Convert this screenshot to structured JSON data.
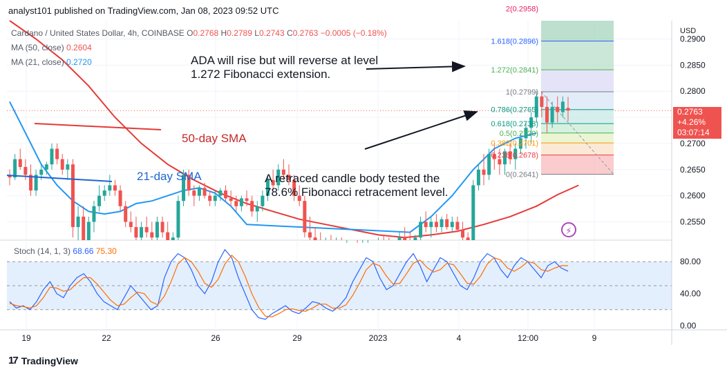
{
  "publisher": {
    "name": "analyst101",
    "line": "analyst101 published on TradingView.com, Jan 08, 2023 09:52 UTC"
  },
  "brand": {
    "logo": "17",
    "name": "TradingView"
  },
  "legend": {
    "symbol": "Cardano / United States Dollar, 4h, COINBASE",
    "ohlc": [
      {
        "k": "O",
        "v": "0.2768"
      },
      {
        "k": "H",
        "v": "0.2789"
      },
      {
        "k": "L",
        "v": "0.2743"
      },
      {
        "k": "C",
        "v": "0.2763"
      }
    ],
    "change": "−0.0005 (−0.18%)",
    "ma50_label": "MA (50, close)",
    "ma50_value": "0.2604",
    "ma21_label": "MA (21, close)",
    "ma21_value": "0.2720"
  },
  "annotations": {
    "top_line1": "ADA  will rise but will reverse at level",
    "top_line2": "1.272 Fibonacci extension.",
    "sma50": "50-day SMA",
    "sma21": "21-day SMA",
    "mid_line1": "A retraced candle body tested the",
    "mid_line2": "78.6% Fibonacci retracement level."
  },
  "price_box": {
    "price": "0.2763",
    "change": "+4.26%",
    "countdown": "03:07:14"
  },
  "stoch": {
    "label": "Stoch (14, 1, 3)",
    "k": "68.66",
    "d": "75.30"
  },
  "colors": {
    "up": "#26a69a",
    "down": "#ef5350",
    "ma50": "#e53935",
    "ma21": "#2196f3",
    "stoch_k": "#2962ff",
    "stoch_d": "#ff6d00",
    "note_sma50": "#c62828",
    "note_sma21": "#1e66d0",
    "bolt": "#ab47bc"
  },
  "chart_data": {
    "type": "candlestick",
    "title": "Cardano / United States Dollar, 4h, COINBASE",
    "ylabel": "USD",
    "ylim": [
      0.2515,
      0.2935
    ],
    "y_ticks": [
      "0.2900",
      "0.2850",
      "0.2800",
      "0.2750",
      "0.2700",
      "0.2650",
      "0.2600",
      "0.2550"
    ],
    "x_ticks": [
      "19",
      "22",
      "26",
      "29",
      "2023",
      "4",
      "12:00",
      "9"
    ],
    "candles": [
      [
        0.264,
        0.265,
        0.262,
        0.2635
      ],
      [
        0.2635,
        0.268,
        0.263,
        0.267
      ],
      [
        0.267,
        0.269,
        0.265,
        0.2655
      ],
      [
        0.2655,
        0.267,
        0.263,
        0.264
      ],
      [
        0.264,
        0.266,
        0.26,
        0.261
      ],
      [
        0.261,
        0.265,
        0.26,
        0.264
      ],
      [
        0.264,
        0.266,
        0.263,
        0.265
      ],
      [
        0.265,
        0.2665,
        0.264,
        0.266
      ],
      [
        0.266,
        0.27,
        0.265,
        0.269
      ],
      [
        0.269,
        0.27,
        0.266,
        0.267
      ],
      [
        0.267,
        0.268,
        0.264,
        0.265
      ],
      [
        0.265,
        0.267,
        0.263,
        0.266
      ],
      [
        0.266,
        0.267,
        0.252,
        0.254
      ],
      [
        0.254,
        0.258,
        0.251,
        0.256
      ],
      [
        0.256,
        0.258,
        0.25,
        0.251
      ],
      [
        0.251,
        0.256,
        0.25,
        0.255
      ],
      [
        0.255,
        0.259,
        0.253,
        0.258
      ],
      [
        0.258,
        0.262,
        0.257,
        0.26
      ],
      [
        0.26,
        0.262,
        0.259,
        0.261
      ],
      [
        0.261,
        0.264,
        0.26,
        0.262
      ],
      [
        0.262,
        0.263,
        0.26,
        0.261
      ],
      [
        0.261,
        0.262,
        0.257,
        0.258
      ],
      [
        0.258,
        0.259,
        0.254,
        0.255
      ],
      [
        0.255,
        0.257,
        0.253,
        0.254
      ],
      [
        0.254,
        0.256,
        0.251,
        0.252
      ],
      [
        0.252,
        0.255,
        0.25,
        0.254
      ],
      [
        0.254,
        0.256,
        0.252,
        0.253
      ],
      [
        0.253,
        0.255,
        0.251,
        0.252
      ],
      [
        0.252,
        0.256,
        0.25,
        0.255
      ],
      [
        0.255,
        0.256,
        0.252,
        0.253
      ],
      [
        0.253,
        0.255,
        0.25,
        0.251
      ],
      [
        0.251,
        0.253,
        0.25,
        0.252
      ],
      [
        0.252,
        0.26,
        0.251,
        0.259
      ],
      [
        0.259,
        0.265,
        0.258,
        0.264
      ],
      [
        0.264,
        0.265,
        0.26,
        0.261
      ],
      [
        0.261,
        0.262,
        0.258,
        0.26
      ],
      [
        0.26,
        0.262,
        0.259,
        0.2615
      ],
      [
        0.2615,
        0.2625,
        0.2595,
        0.26
      ],
      [
        0.26,
        0.261,
        0.258,
        0.259
      ],
      [
        0.259,
        0.261,
        0.258,
        0.26
      ],
      [
        0.26,
        0.2615,
        0.259,
        0.261
      ],
      [
        0.261,
        0.262,
        0.259,
        0.2595
      ],
      [
        0.2595,
        0.261,
        0.258,
        0.259
      ],
      [
        0.259,
        0.26,
        0.257,
        0.258
      ],
      [
        0.258,
        0.26,
        0.257,
        0.2595
      ],
      [
        0.2595,
        0.261,
        0.258,
        0.259
      ],
      [
        0.259,
        0.26,
        0.256,
        0.257
      ],
      [
        0.257,
        0.259,
        0.255,
        0.258
      ],
      [
        0.258,
        0.261,
        0.257,
        0.26
      ],
      [
        0.26,
        0.264,
        0.259,
        0.263
      ],
      [
        0.263,
        0.265,
        0.261,
        0.262
      ],
      [
        0.262,
        0.266,
        0.261,
        0.265
      ],
      [
        0.265,
        0.267,
        0.263,
        0.264
      ],
      [
        0.264,
        0.266,
        0.262,
        0.263
      ],
      [
        0.263,
        0.264,
        0.259,
        0.26
      ],
      [
        0.26,
        0.262,
        0.258,
        0.259
      ],
      [
        0.259,
        0.26,
        0.252,
        0.253
      ],
      [
        0.253,
        0.256,
        0.251,
        0.252
      ],
      [
        0.252,
        0.254,
        0.25,
        0.251
      ],
      [
        0.251,
        0.253,
        0.25,
        0.2505
      ],
      [
        0.2505,
        0.252,
        0.2495,
        0.251
      ],
      [
        0.251,
        0.2525,
        0.2495,
        0.25
      ],
      [
        0.25,
        0.252,
        0.249,
        0.251
      ],
      [
        0.251,
        0.252,
        0.2495,
        0.25
      ],
      [
        0.25,
        0.251,
        0.249,
        0.2505
      ],
      [
        0.2505,
        0.2515,
        0.2495,
        0.25
      ],
      [
        0.25,
        0.251,
        0.249,
        0.2495
      ],
      [
        0.2495,
        0.251,
        0.249,
        0.25
      ],
      [
        0.25,
        0.251,
        0.249,
        0.2505
      ],
      [
        0.2505,
        0.2515,
        0.2495,
        0.25
      ],
      [
        0.25,
        0.252,
        0.249,
        0.251
      ],
      [
        0.251,
        0.2525,
        0.25,
        0.2505
      ],
      [
        0.2505,
        0.252,
        0.2495,
        0.25
      ],
      [
        0.25,
        0.2515,
        0.249,
        0.251
      ],
      [
        0.251,
        0.253,
        0.25,
        0.252
      ],
      [
        0.252,
        0.254,
        0.251,
        0.2515
      ],
      [
        0.2515,
        0.253,
        0.25,
        0.251
      ],
      [
        0.251,
        0.2525,
        0.25,
        0.252
      ],
      [
        0.252,
        0.256,
        0.251,
        0.255
      ],
      [
        0.255,
        0.257,
        0.253,
        0.254
      ],
      [
        0.254,
        0.256,
        0.252,
        0.255
      ],
      [
        0.255,
        0.2565,
        0.253,
        0.254
      ],
      [
        0.254,
        0.256,
        0.253,
        0.2555
      ],
      [
        0.2555,
        0.2565,
        0.2535,
        0.254
      ],
      [
        0.254,
        0.256,
        0.253,
        0.255
      ],
      [
        0.255,
        0.256,
        0.253,
        0.2535
      ],
      [
        0.2535,
        0.255,
        0.251,
        0.252
      ],
      [
        0.252,
        0.253,
        0.2505,
        0.2515
      ],
      [
        0.2515,
        0.263,
        0.251,
        0.262
      ],
      [
        0.262,
        0.266,
        0.261,
        0.265
      ],
      [
        0.265,
        0.268,
        0.262,
        0.264
      ],
      [
        0.264,
        0.269,
        0.263,
        0.268
      ],
      [
        0.268,
        0.27,
        0.265,
        0.267
      ],
      [
        0.267,
        0.269,
        0.264,
        0.266
      ],
      [
        0.266,
        0.269,
        0.264,
        0.2685
      ],
      [
        0.2685,
        0.27,
        0.266,
        0.267
      ],
      [
        0.267,
        0.27,
        0.265,
        0.269
      ],
      [
        0.269,
        0.272,
        0.268,
        0.271
      ],
      [
        0.271,
        0.274,
        0.269,
        0.273
      ],
      [
        0.273,
        0.276,
        0.27,
        0.275
      ],
      [
        0.275,
        0.28,
        0.274,
        0.279
      ],
      [
        0.279,
        0.28,
        0.275,
        0.277
      ],
      [
        0.277,
        0.279,
        0.272,
        0.274
      ],
      [
        0.274,
        0.278,
        0.273,
        0.277
      ],
      [
        0.277,
        0.279,
        0.274,
        0.276
      ],
      [
        0.276,
        0.279,
        0.275,
        0.278
      ],
      [
        0.2768,
        0.2789,
        0.2743,
        0.2763
      ]
    ],
    "ma50": [
      0.2935,
      0.29,
      0.286,
      0.281,
      0.275,
      0.27,
      0.266,
      0.263,
      0.2605,
      0.2585,
      0.257,
      0.2555,
      0.2545,
      0.2535,
      0.2525,
      0.252,
      0.2525,
      0.2532,
      0.2545,
      0.256,
      0.258,
      0.2602,
      0.262
    ],
    "ma50_x": [
      0,
      5,
      10,
      15,
      20,
      25,
      30,
      35,
      40,
      45,
      50,
      55,
      60,
      65,
      70,
      75,
      80,
      85,
      90,
      95,
      100,
      104,
      108
    ],
    "ma21": [
      0.278,
      0.272,
      0.266,
      0.262,
      0.259,
      0.257,
      0.2565,
      0.257,
      0.2585,
      0.259,
      0.26,
      0.261,
      0.2615,
      0.2605,
      0.258,
      0.2545,
      0.2505,
      0.247,
      0.244,
      0.242,
      0.241,
      0.243,
      0.247,
      0.25,
      0.253,
      0.256,
      0.26,
      0.265,
      0.269,
      0.271,
      0.272
    ],
    "ma21_x": [
      0,
      3,
      6,
      9,
      12,
      15,
      18,
      21,
      24,
      27,
      30,
      33,
      36,
      39,
      42,
      45,
      48,
      51,
      54,
      57,
      60,
      64,
      68,
      72,
      76,
      80,
      84,
      88,
      92,
      96,
      100
    ],
    "fibonacci": {
      "levels": [
        {
          "ratio": "0",
          "price": "0.2641",
          "value": 0.2641
        },
        {
          "ratio": "0.236",
          "price": "0.2678",
          "value": 0.2678
        },
        {
          "ratio": "0.382",
          "price": "0.2701",
          "value": 0.2701
        },
        {
          "ratio": "0.5",
          "price": "0.2720",
          "value": 0.272
        },
        {
          "ratio": "0.618",
          "price": "0.2738",
          "value": 0.2738
        },
        {
          "ratio": "0.786",
          "price": "0.2765",
          "value": 0.2765
        },
        {
          "ratio": "1",
          "price": "0.2799",
          "value": 0.2799
        },
        {
          "ratio": "1.272",
          "price": "0.2841",
          "value": 0.2841
        },
        {
          "ratio": "1.618",
          "price": "0.2896",
          "value": 0.2896
        },
        {
          "ratio": "2",
          "price": "0.2958",
          "value": 0.2958
        }
      ]
    },
    "stoch_axis": [
      "80.00",
      "40.00",
      "0.00"
    ],
    "stoch_k": [
      30,
      22,
      25,
      20,
      30,
      45,
      55,
      40,
      35,
      50,
      60,
      65,
      55,
      40,
      30,
      25,
      20,
      35,
      50,
      40,
      30,
      20,
      25,
      60,
      80,
      90,
      85,
      70,
      50,
      40,
      55,
      80,
      95,
      85,
      60,
      40,
      20,
      10,
      8,
      15,
      20,
      25,
      18,
      15,
      22,
      30,
      28,
      22,
      18,
      25,
      35,
      55,
      70,
      85,
      80,
      60,
      45,
      50,
      65,
      80,
      90,
      75,
      55,
      70,
      85,
      80,
      65,
      50,
      45,
      60,
      80,
      90,
      85,
      70,
      60,
      75,
      85,
      80,
      70,
      60,
      75,
      80,
      72,
      68
    ],
    "stoch_d": [
      28,
      25,
      24,
      22,
      25,
      35,
      48,
      47,
      43,
      45,
      53,
      60,
      60,
      52,
      42,
      32,
      25,
      27,
      35,
      42,
      40,
      30,
      26,
      37,
      55,
      77,
      85,
      80,
      68,
      53,
      48,
      58,
      77,
      88,
      80,
      62,
      40,
      23,
      12,
      11,
      15,
      20,
      21,
      19,
      18,
      22,
      27,
      27,
      22,
      22,
      26,
      38,
      53,
      70,
      78,
      75,
      62,
      52,
      53,
      65,
      78,
      82,
      73,
      67,
      70,
      78,
      76,
      65,
      53,
      52,
      62,
      77,
      85,
      82,
      72,
      68,
      73,
      80,
      78,
      70,
      68,
      72,
      75,
      75
    ]
  }
}
